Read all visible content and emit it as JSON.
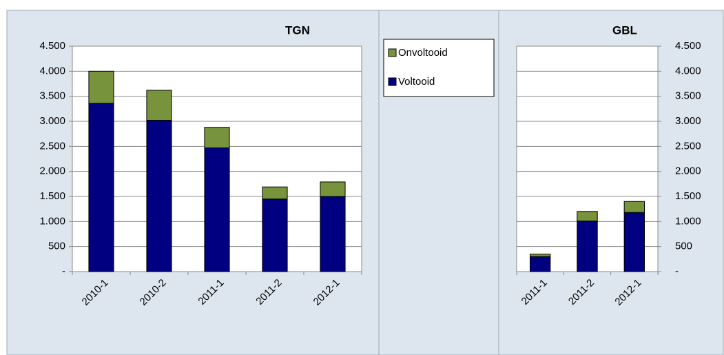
{
  "chart_data": [
    {
      "type": "bar",
      "stacked": true,
      "title": "TGN",
      "y_axis_side": "left",
      "categories": [
        "2010-1",
        "2010-2",
        "2011-1",
        "2011-2",
        "2012-1"
      ],
      "series": [
        {
          "name": "Voltooid",
          "color": "#000080",
          "values": [
            3360,
            3020,
            2470,
            1450,
            1500
          ]
        },
        {
          "name": "Onvoltooid",
          "color": "#77933c",
          "values": [
            640,
            600,
            410,
            240,
            290
          ]
        }
      ],
      "ylim": [
        0,
        4500
      ],
      "yticks": [
        {
          "value": 0,
          "label": "-"
        },
        500,
        {
          "value": 1000,
          "label": "1.000"
        },
        {
          "value": 1500,
          "label": "1.500"
        },
        {
          "value": 2000,
          "label": "2.000"
        },
        {
          "value": 2500,
          "label": "2.500"
        },
        {
          "value": 3000,
          "label": "3.000"
        },
        {
          "value": 3500,
          "label": "3.500"
        },
        {
          "value": 4000,
          "label": "4.000"
        },
        {
          "value": 4500,
          "label": "4.500"
        }
      ],
      "grid": true
    },
    {
      "type": "bar",
      "stacked": true,
      "title": "GBL",
      "y_axis_side": "right",
      "categories": [
        "2011-1",
        "2011-2",
        "2012-1"
      ],
      "series": [
        {
          "name": "Voltooid",
          "color": "#000080",
          "values": [
            300,
            1010,
            1180
          ]
        },
        {
          "name": "Onvoltooid",
          "color": "#77933c",
          "values": [
            50,
            190,
            220
          ]
        }
      ],
      "ylim": [
        0,
        4500
      ],
      "yticks": [
        {
          "value": 0,
          "label": "-"
        },
        500,
        {
          "value": 1000,
          "label": "1.000"
        },
        {
          "value": 1500,
          "label": "1.500"
        },
        {
          "value": 2000,
          "label": "2.000"
        },
        {
          "value": 2500,
          "label": "2.500"
        },
        {
          "value": 3000,
          "label": "3.000"
        },
        {
          "value": 3500,
          "label": "3.500"
        },
        {
          "value": 4000,
          "label": "4.000"
        },
        {
          "value": 4500,
          "label": "4.500"
        }
      ],
      "grid": true
    }
  ]
}
